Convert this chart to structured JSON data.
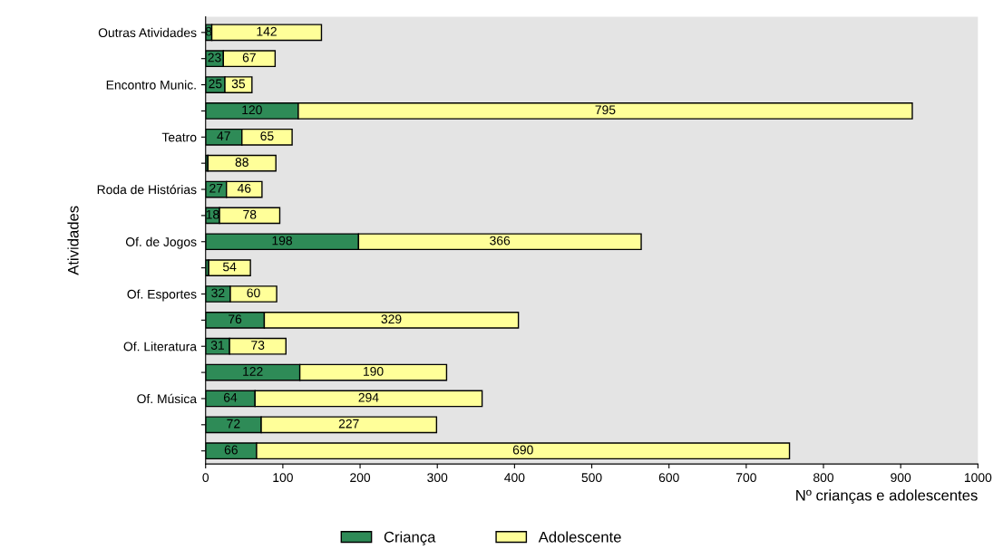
{
  "chart_data": {
    "type": "bar",
    "orientation": "horizontal",
    "stacked": true,
    "ylabel": "Atividades",
    "xlabel": "Nº crianças e adolescentes",
    "categories": [
      "Outras Atividades",
      null,
      "Encontro Munic.",
      null,
      "Teatro",
      null,
      "Roda de Histórias",
      null,
      "Of. de Jogos",
      null,
      "Of. Esportes",
      null,
      "Of. Literatura",
      null,
      "Of. Música",
      null,
      null
    ],
    "series": [
      {
        "name": "Criança",
        "color": "#2e8b57",
        "values": [
          8,
          23,
          25,
          120,
          47,
          3,
          27,
          18,
          198,
          4,
          32,
          76,
          31,
          122,
          64,
          72,
          66
        ],
        "value_labels": [
          "8",
          "23",
          "25",
          "120",
          "47",
          null,
          "27",
          "18",
          "198",
          null,
          "32",
          "76",
          "31",
          "122",
          "64",
          "72",
          "66"
        ]
      },
      {
        "name": "Adolescente",
        "color": "#ffff99",
        "values": [
          142,
          67,
          35,
          795,
          65,
          88,
          46,
          78,
          366,
          54,
          60,
          329,
          73,
          190,
          294,
          227,
          690
        ],
        "value_labels": [
          "142",
          "67",
          "35",
          "795",
          "65",
          "88",
          "46",
          "78",
          "366",
          "54",
          "60",
          "329",
          "73",
          "190",
          "294",
          "227",
          "690"
        ]
      }
    ],
    "xlim": [
      0,
      1000
    ],
    "xticks": [
      0,
      100,
      200,
      300,
      400,
      500,
      600,
      700,
      800,
      900,
      1000
    ],
    "legend": "bottom",
    "grid": false
  }
}
